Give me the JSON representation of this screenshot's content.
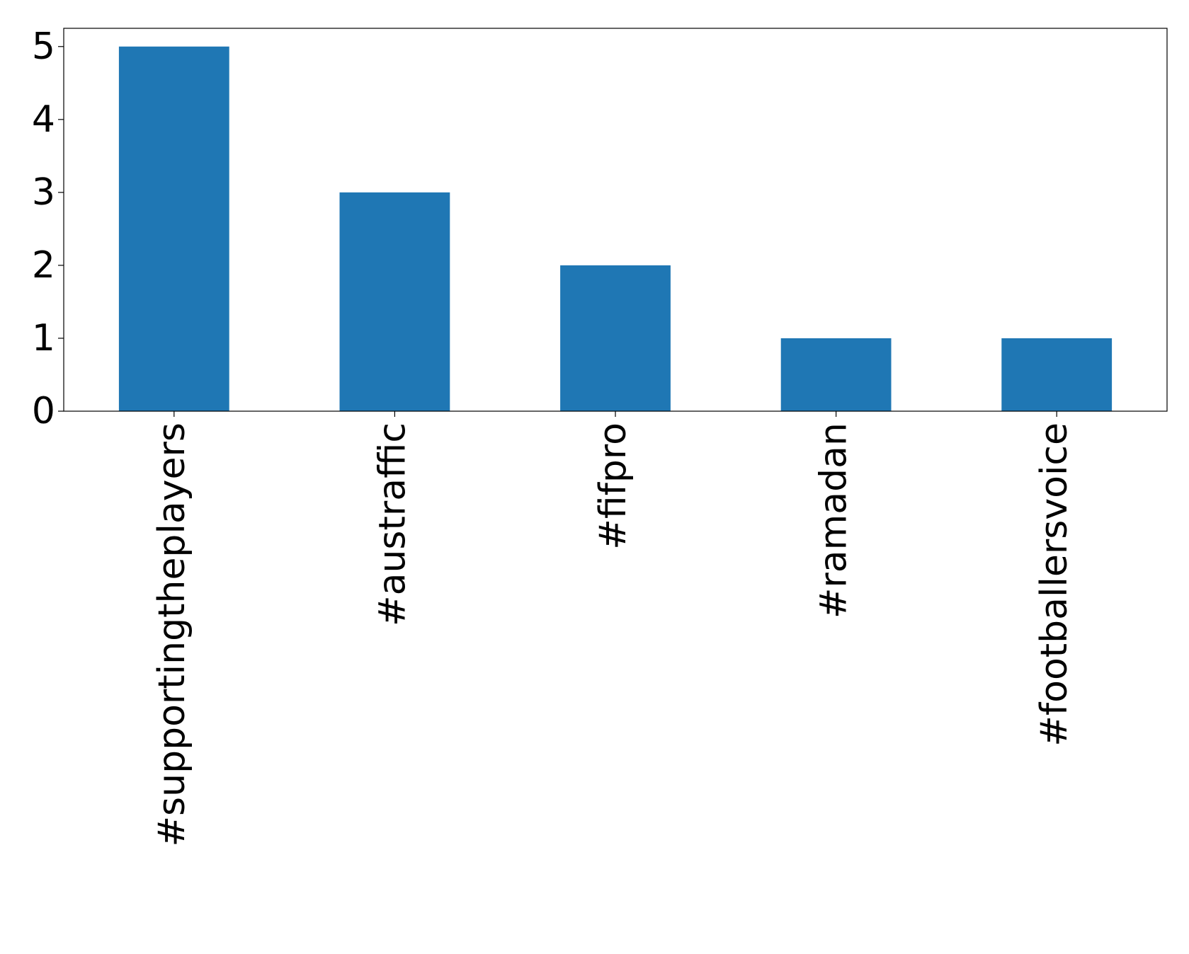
{
  "chart_data": {
    "type": "bar",
    "categories": [
      "#supportingtheplayers",
      "#austraffic",
      "#fifpro",
      "#ramadan",
      "#footballersvoice"
    ],
    "values": [
      5,
      3,
      2,
      1,
      1
    ],
    "color": "#1f77b4",
    "ylim": [
      0,
      5.25
    ],
    "yticks": [
      0,
      1,
      2,
      3,
      4,
      5
    ],
    "grid": false
  }
}
